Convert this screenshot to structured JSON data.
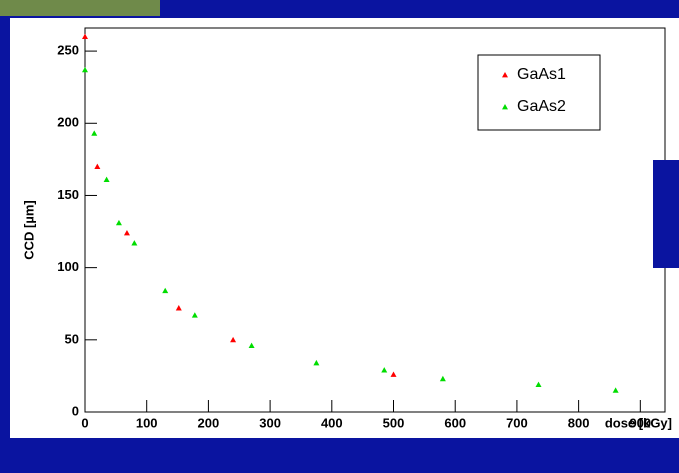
{
  "chart_data": {
    "type": "scatter",
    "y_label": "CCD [µm]",
    "x_label": "dose [kGy]",
    "xlim": [
      0,
      940
    ],
    "xticks": [
      0,
      100,
      200,
      300,
      400,
      500,
      600,
      700,
      800,
      900
    ],
    "ylim": [
      0,
      266
    ],
    "yticks": [
      0,
      50,
      100,
      150,
      200,
      250
    ],
    "legend": "top-right",
    "series": [
      {
        "name": "GaAs1",
        "color": "#ff0000",
        "x": [
          0,
          20,
          68,
          152,
          240,
          500
        ],
        "values": [
          260,
          170,
          124,
          72,
          50,
          26
        ]
      },
      {
        "name": "GaAs2",
        "color": "#00dd00",
        "x": [
          0,
          15,
          35,
          55,
          80,
          130,
          178,
          270,
          375,
          485,
          580,
          735,
          860
        ],
        "values": [
          237,
          193,
          161,
          131,
          117,
          84,
          67,
          46,
          34,
          29,
          23,
          19,
          15
        ]
      }
    ]
  }
}
